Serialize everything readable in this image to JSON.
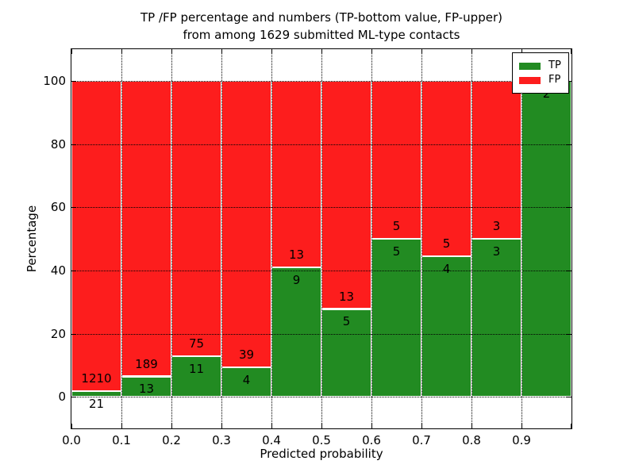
{
  "title": {
    "line1": "TP /FP percentage and numbers (TP-bottom value, FP-upper)",
    "line2": "from among 1629 submitted ML-type contacts"
  },
  "axes": {
    "xlabel": "Predicted probability",
    "ylabel": "Percentage",
    "x_tick_labels": [
      "0.0",
      "0.1",
      "0.2",
      "0.3",
      "0.4",
      "0.5",
      "0.6",
      "0.7",
      "0.8",
      "0.9"
    ],
    "y_tick_labels": [
      "0",
      "20",
      "40",
      "60",
      "80",
      "100"
    ]
  },
  "legend": {
    "items": [
      {
        "label": "TP",
        "color": "#228b22"
      },
      {
        "label": "FP",
        "color": "#fd1d1d"
      }
    ]
  },
  "chart_data": {
    "type": "bar",
    "stacked": true,
    "normalized": "each bin scaled to 100%",
    "title": "TP /FP percentage and numbers (TP-bottom value, FP-upper) from among 1629 submitted ML-type contacts",
    "xlabel": "Predicted probability",
    "ylabel": "Percentage",
    "xlim": [
      0.0,
      1.0
    ],
    "ylim": [
      -10,
      110
    ],
    "grid": true,
    "legend_position": "upper right",
    "total_contacts": 1629,
    "bin_edges": [
      0.0,
      0.1,
      0.2,
      0.3,
      0.4,
      0.5,
      0.6,
      0.7,
      0.8,
      0.9,
      1.0
    ],
    "categories": [
      "0.0-0.1",
      "0.1-0.2",
      "0.2-0.3",
      "0.3-0.4",
      "0.4-0.5",
      "0.5-0.6",
      "0.6-0.7",
      "0.7-0.8",
      "0.8-0.9",
      "0.9-1.0"
    ],
    "series": [
      {
        "name": "TP",
        "color": "#228b22",
        "counts": [
          21,
          13,
          11,
          4,
          9,
          5,
          5,
          4,
          3,
          2
        ],
        "percent": [
          1.71,
          6.44,
          12.79,
          9.3,
          40.91,
          27.78,
          50.0,
          44.44,
          50.0,
          100.0
        ]
      },
      {
        "name": "FP",
        "color": "#fd1d1d",
        "counts": [
          1210,
          189,
          75,
          39,
          13,
          13,
          5,
          5,
          3,
          0
        ],
        "percent": [
          98.29,
          93.56,
          87.21,
          90.7,
          59.09,
          72.22,
          50.0,
          55.56,
          50.0,
          0.0
        ]
      }
    ]
  }
}
